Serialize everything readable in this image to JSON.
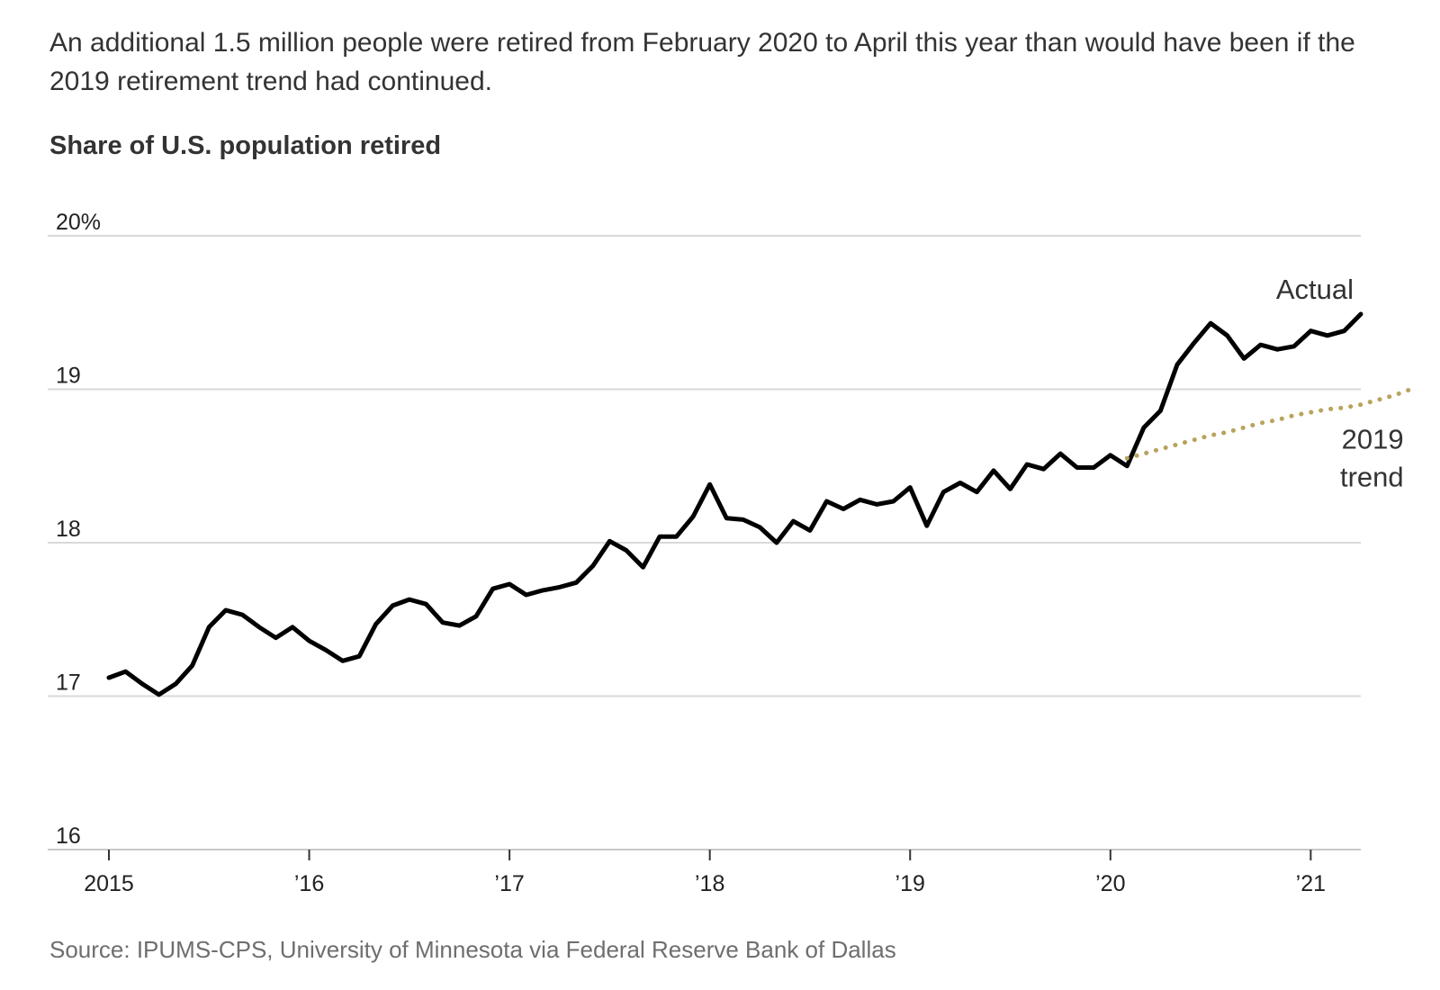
{
  "intro_text": "An additional 1.5 million people were retired from February 2020 to April this year than would have been if the 2019 retirement trend had continued.",
  "source": "Source: IPUMS-CPS, University of Minnesota via Federal Reserve Bank of Dallas",
  "colors": {
    "actual": "#000000",
    "trend": "#b9a35c",
    "grid": "#d9d9d9",
    "axis": "#c8c8c8"
  },
  "chart_data": {
    "type": "line",
    "title": "Share of U.S. population retired",
    "xlabel": "",
    "ylabel": "",
    "ylim": [
      16,
      20
    ],
    "xlim": [
      "2015-01",
      "2021-04"
    ],
    "grid": true,
    "y_ticks": [
      {
        "value": 20,
        "label": "20%"
      },
      {
        "value": 19,
        "label": "19"
      },
      {
        "value": 18,
        "label": "18"
      },
      {
        "value": 17,
        "label": "17"
      },
      {
        "value": 16,
        "label": "16"
      }
    ],
    "x_ticks": [
      {
        "date": "2015-01",
        "label": "2015"
      },
      {
        "date": "2016-01",
        "label": "’16"
      },
      {
        "date": "2017-01",
        "label": "’17"
      },
      {
        "date": "2018-01",
        "label": "’18"
      },
      {
        "date": "2019-01",
        "label": "’19"
      },
      {
        "date": "2020-01",
        "label": "’20"
      },
      {
        "date": "2021-01",
        "label": "’21"
      }
    ],
    "series": [
      {
        "name": "Actual",
        "style": "solid",
        "start": "2015-01",
        "frequency": "monthly",
        "values": [
          17.12,
          17.16,
          17.08,
          17.01,
          17.08,
          17.2,
          17.45,
          17.56,
          17.53,
          17.45,
          17.38,
          17.45,
          17.36,
          17.3,
          17.23,
          17.26,
          17.47,
          17.59,
          17.63,
          17.6,
          17.48,
          17.46,
          17.52,
          17.7,
          17.73,
          17.66,
          17.69,
          17.71,
          17.74,
          17.85,
          18.01,
          17.95,
          17.84,
          18.04,
          18.04,
          18.17,
          18.38,
          18.16,
          18.15,
          18.1,
          18.0,
          18.14,
          18.08,
          18.27,
          18.22,
          18.28,
          18.25,
          18.27,
          18.36,
          18.11,
          18.33,
          18.39,
          18.33,
          18.47,
          18.35,
          18.51,
          18.48,
          18.58,
          18.49,
          18.49,
          18.57,
          18.5,
          18.75,
          18.86,
          19.16,
          19.3,
          19.43,
          19.35,
          19.2,
          19.29,
          19.26,
          19.28,
          19.38,
          19.35,
          19.38,
          19.49
        ]
      },
      {
        "name": "2019 trend",
        "style": "dotted",
        "start": "2020-02",
        "frequency": "monthly",
        "values": [
          18.55,
          18.58,
          18.61,
          18.64,
          18.67,
          18.7,
          18.72,
          18.75,
          18.78,
          18.8,
          18.83,
          18.85,
          18.87,
          18.88,
          18.9,
          18.93,
          18.96,
          19.0
        ]
      }
    ]
  }
}
